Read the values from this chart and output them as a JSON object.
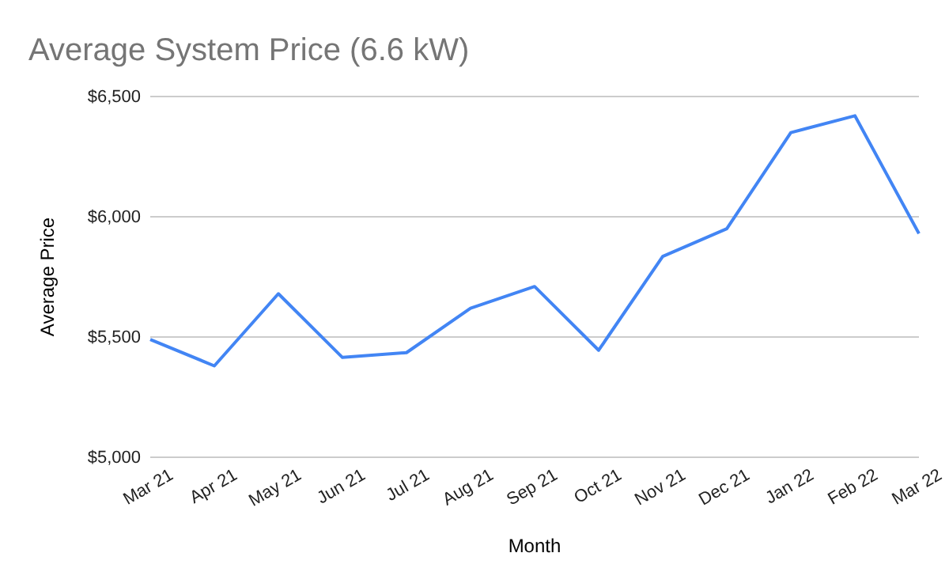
{
  "chart_data": {
    "type": "line",
    "title": "Average System Price (6.6 kW)",
    "xlabel": "Month",
    "ylabel": "Average Price",
    "categories": [
      "Mar 21",
      "Apr 21",
      "May 21",
      "Jun 21",
      "Jul 21",
      "Aug 21",
      "Sep 21",
      "Oct 21",
      "Nov 21",
      "Dec 21",
      "Jan 22",
      "Feb 22",
      "Mar 22"
    ],
    "series": [
      {
        "color": "#4285f4",
        "values": [
          5490,
          5380,
          5680,
          5415,
          5435,
          5620,
          5710,
          5445,
          5835,
          5950,
          6350,
          6420,
          5930
        ]
      }
    ],
    "ylim": [
      5000,
      6500
    ],
    "yticks": [
      {
        "value": 5000,
        "label": "$5,000"
      },
      {
        "value": 5500,
        "label": "$5,500"
      },
      {
        "value": 6000,
        "label": "$6,000"
      },
      {
        "value": 6500,
        "label": "$6,500"
      }
    ],
    "grid": "y",
    "legend": false,
    "marker": "none",
    "line_style": "solid"
  }
}
